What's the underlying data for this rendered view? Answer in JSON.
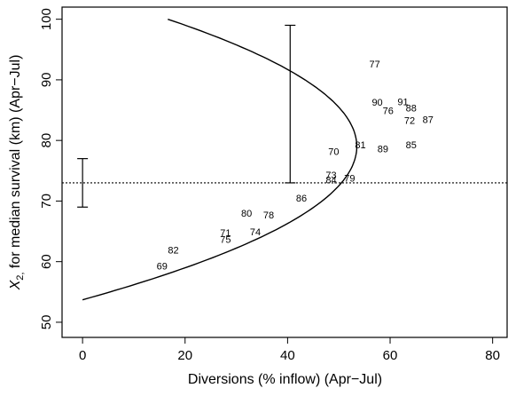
{
  "chart_data": {
    "type": "scatter",
    "xlabel": "Diversions (% inflow) (Apr−Jul)",
    "ylabel_var": "X",
    "ylabel_sub": "2,",
    "ylabel_rest": " for median survival (km) (Apr−Jul)",
    "xlim": [
      -4,
      83
    ],
    "ylim": [
      47.5,
      102
    ],
    "xticks": [
      0,
      20,
      40,
      60,
      80
    ],
    "yticks": [
      50,
      60,
      70,
      80,
      90,
      100
    ],
    "points": [
      {
        "label": "69",
        "x": 15.5,
        "y": 59.3
      },
      {
        "label": "82",
        "x": 17.7,
        "y": 61.9
      },
      {
        "label": "71",
        "x": 27.9,
        "y": 64.8
      },
      {
        "label": "75",
        "x": 27.9,
        "y": 63.7
      },
      {
        "label": "74",
        "x": 33.7,
        "y": 64.9
      },
      {
        "label": "80",
        "x": 32.0,
        "y": 68.0
      },
      {
        "label": "78",
        "x": 36.3,
        "y": 67.7
      },
      {
        "label": "86",
        "x": 42.7,
        "y": 70.5
      },
      {
        "label": "73",
        "x": 48.5,
        "y": 74.3
      },
      {
        "label": "84",
        "x": 48.5,
        "y": 73.5
      },
      {
        "label": "79",
        "x": 52.1,
        "y": 73.8
      },
      {
        "label": "70",
        "x": 49.0,
        "y": 78.2
      },
      {
        "label": "81",
        "x": 54.2,
        "y": 79.3
      },
      {
        "label": "89",
        "x": 58.6,
        "y": 78.6
      },
      {
        "label": "85",
        "x": 64.1,
        "y": 79.3
      },
      {
        "label": "77",
        "x": 57.0,
        "y": 92.6
      },
      {
        "label": "90",
        "x": 57.5,
        "y": 86.3
      },
      {
        "label": "76",
        "x": 59.6,
        "y": 84.9
      },
      {
        "label": "91",
        "x": 62.5,
        "y": 86.4
      },
      {
        "label": "88",
        "x": 64.1,
        "y": 85.4
      },
      {
        "label": "72",
        "x": 63.8,
        "y": 83.3
      },
      {
        "label": "87",
        "x": 67.4,
        "y": 83.5
      }
    ],
    "curve": {
      "vertex_x": 53.5,
      "vertex_y": 79,
      "y_min": 53.7,
      "y_max": 100
    },
    "dotted_hline_y": 73,
    "error_bars": [
      {
        "x": 0,
        "low": 69,
        "high": 77
      },
      {
        "x": 40.5,
        "low": 73,
        "high": 99
      }
    ]
  }
}
